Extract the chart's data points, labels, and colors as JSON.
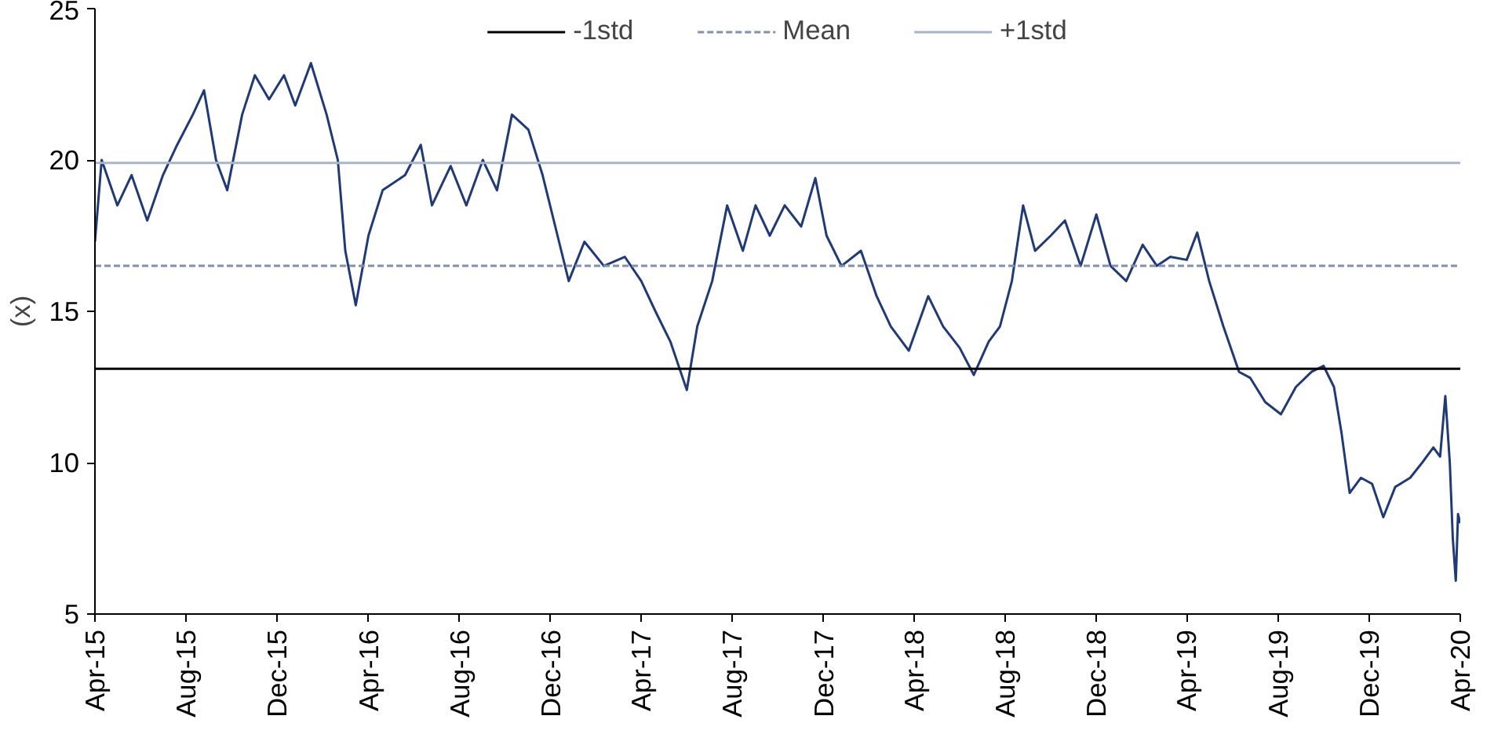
{
  "chart_data": {
    "type": "line",
    "ylabel": "(x)",
    "x": [
      "2015-04-01",
      "2015-04-10",
      "2015-05-01",
      "2015-05-20",
      "2015-06-10",
      "2015-07-01",
      "2015-07-20",
      "2015-08-10",
      "2015-08-25",
      "2015-09-10",
      "2015-09-25",
      "2015-10-15",
      "2015-11-01",
      "2015-11-20",
      "2015-12-10",
      "2015-12-25",
      "2016-01-15",
      "2016-02-05",
      "2016-02-20",
      "2016-03-01",
      "2016-03-15",
      "2016-04-01",
      "2016-04-20",
      "2016-05-20",
      "2016-06-10",
      "2016-06-25",
      "2016-07-20",
      "2016-08-10",
      "2016-09-01",
      "2016-09-20",
      "2016-10-10",
      "2016-11-01",
      "2016-11-20",
      "2016-12-10",
      "2016-12-25",
      "2017-01-15",
      "2017-02-10",
      "2017-03-10",
      "2017-04-01",
      "2017-04-20",
      "2017-05-10",
      "2017-06-01",
      "2017-06-15",
      "2017-07-05",
      "2017-07-25",
      "2017-08-15",
      "2017-09-01",
      "2017-09-20",
      "2017-10-10",
      "2017-11-01",
      "2017-11-20",
      "2017-12-05",
      "2017-12-25",
      "2018-01-20",
      "2018-02-10",
      "2018-03-01",
      "2018-03-25",
      "2018-04-20",
      "2018-05-10",
      "2018-06-01",
      "2018-06-20",
      "2018-07-10",
      "2018-07-25",
      "2018-08-10",
      "2018-08-25",
      "2018-09-10",
      "2018-10-01",
      "2018-10-20",
      "2018-11-10",
      "2018-12-01",
      "2018-12-20",
      "2019-01-10",
      "2019-02-01",
      "2019-02-20",
      "2019-03-10",
      "2019-04-01",
      "2019-04-15",
      "2019-05-01",
      "2019-05-20",
      "2019-06-10",
      "2019-06-25",
      "2019-07-15",
      "2019-08-05",
      "2019-08-25",
      "2019-09-15",
      "2019-10-01",
      "2019-10-15",
      "2019-10-25",
      "2019-11-05",
      "2019-11-20",
      "2019-12-05",
      "2019-12-20",
      "2020-01-05",
      "2020-01-25",
      "2020-02-10",
      "2020-02-25",
      "2020-03-05",
      "2020-03-12",
      "2020-03-18",
      "2020-03-22",
      "2020-03-26",
      "2020-03-29",
      "2020-04-01"
    ],
    "series": [
      {
        "color": "#1f3a7a",
        "values": [
          17.3,
          20.0,
          18.5,
          19.5,
          18.0,
          19.5,
          20.5,
          21.5,
          22.3,
          20.0,
          19.0,
          21.5,
          22.8,
          22.0,
          22.8,
          21.8,
          23.2,
          21.5,
          20.0,
          17.0,
          15.2,
          17.5,
          19.0,
          19.5,
          20.5,
          18.5,
          19.8,
          18.5,
          20.0,
          19.0,
          21.5,
          21.0,
          19.5,
          17.5,
          16.0,
          17.3,
          16.5,
          16.8,
          16.0,
          15.0,
          14.0,
          12.4,
          14.5,
          16.0,
          18.5,
          17.0,
          18.5,
          17.5,
          18.5,
          17.8,
          19.4,
          17.5,
          16.5,
          17.0,
          15.5,
          14.5,
          13.7,
          15.5,
          14.5,
          13.8,
          12.9,
          14.0,
          14.5,
          16.0,
          18.5,
          17.0,
          17.5,
          18.0,
          16.5,
          18.2,
          16.5,
          16.0,
          17.2,
          16.5,
          16.8,
          16.7,
          17.6,
          16.0,
          14.5,
          13.0,
          12.8,
          12.0,
          11.6,
          12.5,
          13.0,
          13.2,
          12.5,
          11.0,
          9.0,
          9.5,
          9.3,
          8.2,
          9.2,
          9.5,
          10.0,
          10.5,
          10.2,
          12.2,
          10.0,
          7.5,
          6.1,
          8.3,
          8.0
        ]
      }
    ],
    "ref_lines": [
      {
        "axis": "y",
        "value": 13.1,
        "label": "-1std",
        "color": "#000000",
        "line_style": "solid"
      },
      {
        "axis": "y",
        "value": 16.5,
        "label": "Mean",
        "color": "#7f8fb5",
        "line_style": "dashed"
      },
      {
        "axis": "y",
        "value": 19.9,
        "label": "+1std",
        "color": "#a6b4cc",
        "line_style": "solid"
      }
    ],
    "xlim": [
      "2015-04-01",
      "2020-04-01"
    ],
    "xticks": [
      {
        "value": "2015-04-01",
        "label": "Apr-15"
      },
      {
        "value": "2015-08-01",
        "label": "Aug-15"
      },
      {
        "value": "2015-12-01",
        "label": "Dec-15"
      },
      {
        "value": "2016-04-01",
        "label": "Apr-16"
      },
      {
        "value": "2016-08-01",
        "label": "Aug-16"
      },
      {
        "value": "2016-12-01",
        "label": "Dec-16"
      },
      {
        "value": "2017-04-01",
        "label": "Apr-17"
      },
      {
        "value": "2017-08-01",
        "label": "Aug-17"
      },
      {
        "value": "2017-12-01",
        "label": "Dec-17"
      },
      {
        "value": "2018-04-01",
        "label": "Apr-18"
      },
      {
        "value": "2018-08-01",
        "label": "Aug-18"
      },
      {
        "value": "2018-12-01",
        "label": "Dec-18"
      },
      {
        "value": "2019-04-01",
        "label": "Apr-19"
      },
      {
        "value": "2019-08-01",
        "label": "Aug-19"
      },
      {
        "value": "2019-12-01",
        "label": "Dec-19"
      },
      {
        "value": "2020-04-01",
        "label": "Apr-20"
      }
    ],
    "ylim": [
      5,
      25
    ],
    "yticks": [
      5,
      10,
      15,
      20,
      25
    ],
    "grid": false,
    "legend": "top",
    "line_style": "solid",
    "marker": "none"
  }
}
